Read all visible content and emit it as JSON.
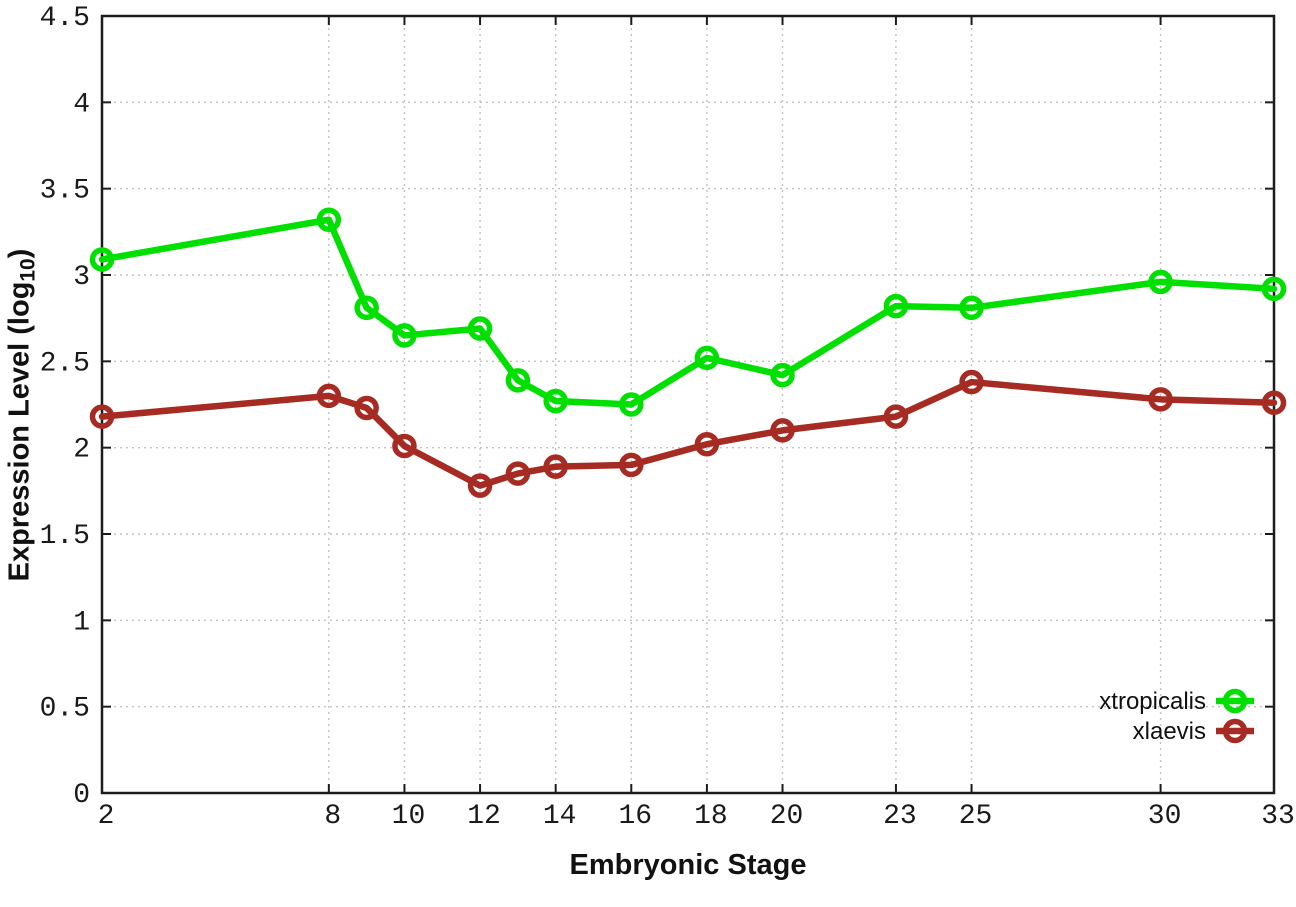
{
  "chart_data": {
    "type": "line",
    "title": "",
    "xlabel": "Embryonic Stage",
    "ylabel": "Expression Level (log10)",
    "ylabel_parts": {
      "pre": "Expression Level (log",
      "sub": "10",
      "post": ")"
    },
    "xlim": [
      2,
      33
    ],
    "ylim": [
      0,
      4.5
    ],
    "x_ticks": [
      2,
      8,
      10,
      12,
      14,
      16,
      18,
      20,
      23,
      25,
      30,
      33
    ],
    "y_ticks": [
      0,
      0.5,
      1,
      1.5,
      2,
      2.5,
      3,
      3.5,
      4,
      4.5
    ],
    "y_tick_labels": [
      "0",
      "0.5",
      "1",
      "1.5",
      "2",
      "2.5",
      "3",
      "3.5",
      "4",
      "4.5"
    ],
    "grid": true,
    "grid_style": "dotted",
    "legend_position": "bottom-right",
    "border_color": "#1c1c1c",
    "grid_color": "#c2c2c2",
    "background_color": "#ffffff",
    "marker": "open-circle",
    "x": [
      2,
      8,
      9,
      10,
      12,
      13,
      14,
      16,
      18,
      20,
      23,
      25,
      30,
      33
    ],
    "series": [
      {
        "name": "xtropicalis",
        "color": "#00e000",
        "values": [
          3.09,
          3.32,
          2.81,
          2.65,
          2.69,
          2.39,
          2.27,
          2.25,
          2.52,
          2.42,
          2.82,
          2.81,
          2.96,
          2.92
        ]
      },
      {
        "name": "xlaevis",
        "color": "#a62b22",
        "values": [
          2.18,
          2.3,
          2.23,
          2.01,
          1.78,
          1.85,
          1.89,
          1.9,
          2.02,
          2.1,
          2.18,
          2.38,
          2.28,
          2.26
        ]
      }
    ]
  }
}
